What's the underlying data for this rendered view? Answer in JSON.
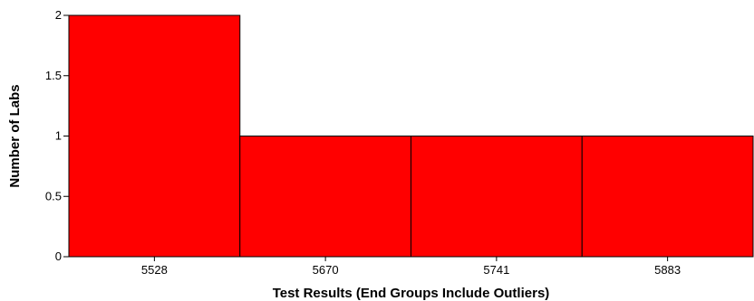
{
  "chart_data": {
    "type": "bar",
    "title": "",
    "xlabel": "Test Results (End Groups Include Outliers)",
    "ylabel": "Number of Labs",
    "categories": [
      "5528",
      "5670",
      "5741",
      "5883"
    ],
    "values": [
      2,
      1,
      1,
      1
    ],
    "ylim": [
      0,
      2
    ],
    "yticks": [
      "0",
      "0.5",
      "1",
      "1.5",
      "2"
    ],
    "bar_color": "#ff0000",
    "grid": false,
    "legend": "none"
  }
}
